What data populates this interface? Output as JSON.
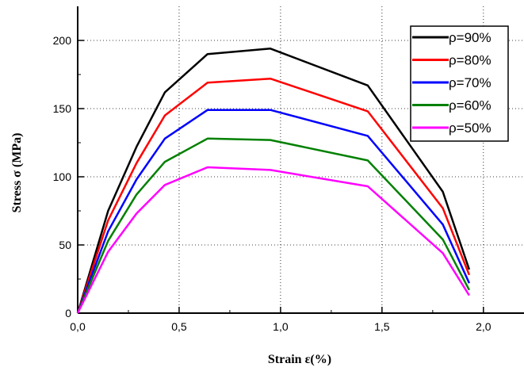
{
  "chart_data": {
    "type": "line",
    "xlabel": "Strain  ε(%)",
    "ylabel": "Stress σ (MPa)",
    "xlim": [
      0,
      2.2
    ],
    "ylim": [
      0,
      225
    ],
    "x_ticks": [
      0.0,
      0.5,
      1.0,
      1.5,
      2.0
    ],
    "x_tick_labels": [
      "0,0",
      "0,5",
      "1,0",
      "1,5",
      "2,0"
    ],
    "y_ticks": [
      0,
      50,
      100,
      150,
      200
    ],
    "y_tick_labels": [
      "0",
      "50",
      "100",
      "150",
      "200"
    ],
    "grid": true,
    "legend_position": "top-right",
    "series": [
      {
        "name": "ρ=90%",
        "color": "#000000",
        "points": [
          [
            0,
            0
          ],
          [
            0.15,
            75
          ],
          [
            0.29,
            122
          ],
          [
            0.43,
            162
          ],
          [
            0.64,
            190
          ],
          [
            0.95,
            194
          ],
          [
            1.43,
            167
          ],
          [
            1.8,
            89
          ],
          [
            1.93,
            32
          ]
        ]
      },
      {
        "name": "ρ=80%",
        "color": "#ff0000",
        "points": [
          [
            0,
            0
          ],
          [
            0.15,
            68
          ],
          [
            0.29,
            110
          ],
          [
            0.43,
            145
          ],
          [
            0.64,
            169
          ],
          [
            0.95,
            172
          ],
          [
            1.43,
            148
          ],
          [
            1.8,
            77
          ],
          [
            1.93,
            28
          ]
        ]
      },
      {
        "name": "ρ=70%",
        "color": "#0000ff",
        "points": [
          [
            0,
            0
          ],
          [
            0.15,
            60
          ],
          [
            0.29,
            98
          ],
          [
            0.43,
            128
          ],
          [
            0.64,
            149
          ],
          [
            0.95,
            149
          ],
          [
            1.43,
            130
          ],
          [
            1.8,
            65
          ],
          [
            1.93,
            22
          ]
        ]
      },
      {
        "name": "ρ=60%",
        "color": "#008000",
        "points": [
          [
            0,
            0
          ],
          [
            0.15,
            53
          ],
          [
            0.29,
            87
          ],
          [
            0.43,
            111
          ],
          [
            0.64,
            128
          ],
          [
            0.95,
            127
          ],
          [
            1.43,
            112
          ],
          [
            1.8,
            54
          ],
          [
            1.93,
            17
          ]
        ]
      },
      {
        "name": "ρ=50%",
        "color": "#ff00ff",
        "points": [
          [
            0,
            0
          ],
          [
            0.15,
            45
          ],
          [
            0.29,
            73
          ],
          [
            0.43,
            94
          ],
          [
            0.64,
            107
          ],
          [
            0.95,
            105
          ],
          [
            1.43,
            93
          ],
          [
            1.8,
            44
          ],
          [
            1.93,
            13
          ]
        ]
      }
    ]
  }
}
